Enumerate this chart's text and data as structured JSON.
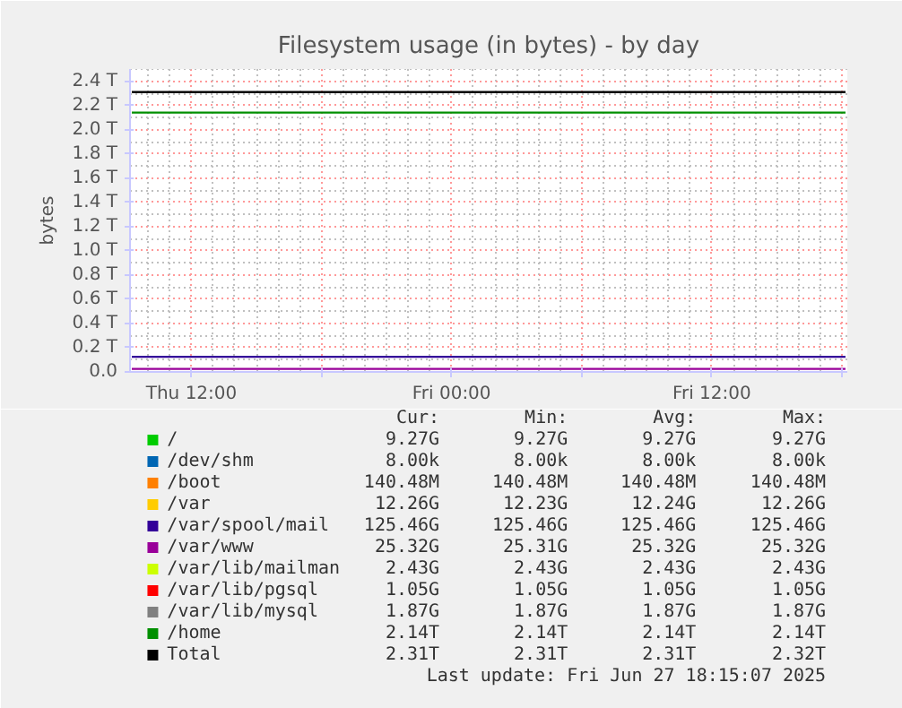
{
  "chart_data": {
    "type": "line",
    "title": "Filesystem usage (in bytes) - by day",
    "ylabel": "bytes",
    "xlim": [
      "2025-06-26T09:10",
      "2025-06-27T18:15"
    ],
    "xticks": [
      {
        "value": "2025-06-26T12:00",
        "label": "Thu 12:00"
      },
      {
        "value": "2025-06-26T18:00",
        "label": null
      },
      {
        "value": "2025-06-27T00:00",
        "label": "Fri 00:00"
      },
      {
        "value": "2025-06-27T06:00",
        "label": null
      },
      {
        "value": "2025-06-27T12:00",
        "label": "Fri 12:00"
      },
      {
        "value": "2025-06-27T18:00",
        "label": null
      }
    ],
    "x": [
      "2025-06-26T09:15",
      "2025-06-27T18:10"
    ],
    "ylim": [
      0,
      2.5
    ],
    "yticks": [
      {
        "value": 0,
        "label": "0.0"
      },
      {
        "value": 0.2,
        "label": "0.2 T"
      },
      {
        "value": 0.4,
        "label": "0.4 T"
      },
      {
        "value": 0.6,
        "label": "0.6 T"
      },
      {
        "value": 0.8,
        "label": "0.8 T"
      },
      {
        "value": 1.0,
        "label": "1.0 T"
      },
      {
        "value": 1.2,
        "label": "1.2 T"
      },
      {
        "value": 1.4,
        "label": "1.4 T"
      },
      {
        "value": 1.6,
        "label": "1.6 T"
      },
      {
        "value": 1.8,
        "label": "1.8 T"
      },
      {
        "value": 2.0,
        "label": "2.0 T"
      },
      {
        "value": 2.2,
        "label": "2.2 T"
      },
      {
        "value": 2.4,
        "label": "2.4 T"
      }
    ],
    "grid": true,
    "legend": "bottom",
    "series": [
      {
        "name": "/",
        "color": "#00cc00",
        "values": [
          null,
          null
        ]
      },
      {
        "name": "/dev/shm",
        "color": "#0066b3",
        "values": [
          null,
          null
        ]
      },
      {
        "name": "/boot",
        "color": "#ff8000",
        "values": [
          null,
          null
        ]
      },
      {
        "name": "/var",
        "color": "#ffcc00",
        "values": [
          null,
          null
        ]
      },
      {
        "name": "/var/spool/mail",
        "color": "#330099",
        "values": [
          0.125,
          0.125
        ]
      },
      {
        "name": "/var/www",
        "color": "#990099",
        "values": [
          0.025,
          0.025
        ]
      },
      {
        "name": "/var/lib/mailman",
        "color": "#ccff00",
        "values": [
          null,
          null
        ]
      },
      {
        "name": "/var/lib/pgsql",
        "color": "#ff0000",
        "values": [
          null,
          null
        ]
      },
      {
        "name": "/var/lib/mysql",
        "color": "#808080",
        "values": [
          null,
          null
        ]
      },
      {
        "name": "/home",
        "color": "#008f00",
        "values": [
          2.14,
          2.14
        ]
      },
      {
        "name": "Total",
        "color": "#000000",
        "values": [
          2.31,
          2.31
        ]
      }
    ],
    "annotations": [
      "Cur:",
      "Min:",
      "Avg:",
      "Max:",
      "9.27G",
      "9.27G",
      "9.27G",
      "9.27G",
      "8.00k",
      "8.00k",
      "8.00k",
      "8.00k",
      "140.48M",
      "140.48M",
      "140.48M",
      "140.48M",
      "12.26G",
      "12.23G",
      "12.24G",
      "12.26G",
      "125.46G",
      "125.46G",
      "125.46G",
      "125.46G",
      "25.32G",
      "25.31G",
      "25.32G",
      "25.32G",
      "2.43G",
      "2.43G",
      "2.43G",
      "2.43G",
      "1.05G",
      "1.05G",
      "1.05G",
      "1.05G",
      "1.87G",
      "1.87G",
      "1.87G",
      "1.87G",
      "2.14T",
      "2.14T",
      "2.14T",
      "2.14T",
      "2.31T",
      "2.31T",
      "2.31T",
      "2.32T",
      "Last update: Fri Jun 27 18:15:07 2025"
    ]
  }
}
